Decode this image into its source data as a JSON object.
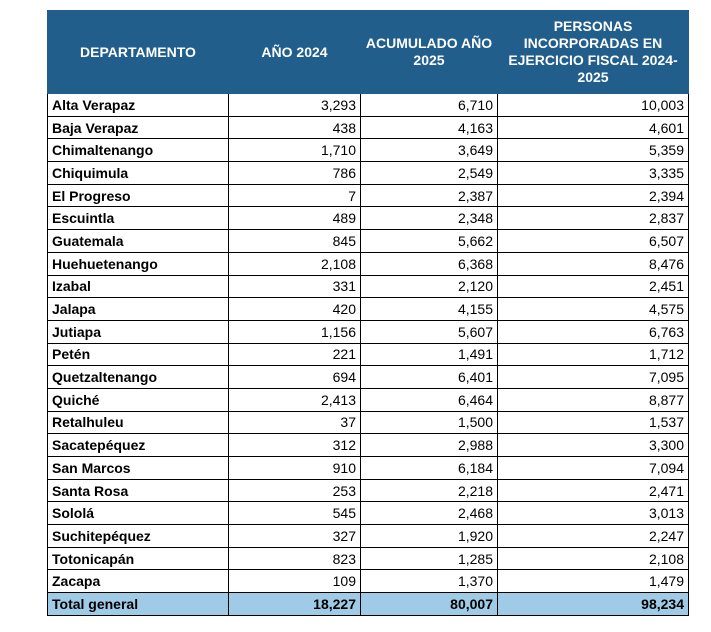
{
  "table": {
    "header": [
      "DEPARTAMENTO",
      "AÑO 2024",
      "ACUMULADO AÑO 2025",
      "PERSONAS INCORPORADAS EN EJERCICIO FISCAL 2024-2025"
    ],
    "rows": [
      [
        "Alta Verapaz",
        "3,293",
        "6,710",
        "10,003"
      ],
      [
        "Baja Verapaz",
        "438",
        "4,163",
        "4,601"
      ],
      [
        "Chimaltenango",
        "1,710",
        "3,649",
        "5,359"
      ],
      [
        "Chiquimula",
        "786",
        "2,549",
        "3,335"
      ],
      [
        "El Progreso",
        "7",
        "2,387",
        "2,394"
      ],
      [
        "Escuintla",
        "489",
        "2,348",
        "2,837"
      ],
      [
        "Guatemala",
        "845",
        "5,662",
        "6,507"
      ],
      [
        "Huehuetenango",
        "2,108",
        "6,368",
        "8,476"
      ],
      [
        "Izabal",
        "331",
        "2,120",
        "2,451"
      ],
      [
        "Jalapa",
        "420",
        "4,155",
        "4,575"
      ],
      [
        "Jutiapa",
        "1,156",
        "5,607",
        "6,763"
      ],
      [
        "Petén",
        "221",
        "1,491",
        "1,712"
      ],
      [
        "Quetzaltenango",
        "694",
        "6,401",
        "7,095"
      ],
      [
        "Quiché",
        "2,413",
        "6,464",
        "8,877"
      ],
      [
        "Retalhuleu",
        "37",
        "1,500",
        "1,537"
      ],
      [
        "Sacatepéquez",
        "312",
        "2,988",
        "3,300"
      ],
      [
        "San Marcos",
        "910",
        "6,184",
        "7,094"
      ],
      [
        "Santa Rosa",
        "253",
        "2,218",
        "2,471"
      ],
      [
        "Sololá",
        "545",
        "2,468",
        "3,013"
      ],
      [
        "Suchitepéquez",
        "327",
        "1,920",
        "2,247"
      ],
      [
        "Totonicapán",
        "823",
        "1,285",
        "2,108"
      ],
      [
        "Zacapa",
        "109",
        "1,370",
        "1,479"
      ]
    ],
    "total": [
      "Total general",
      "18,227",
      "80,007",
      "98,234"
    ]
  }
}
